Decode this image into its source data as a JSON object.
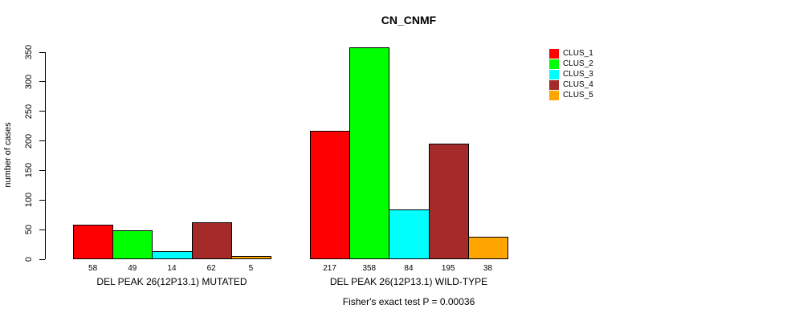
{
  "chart_data": {
    "type": "bar",
    "title": "CN_CNMF",
    "ylabel": "number of cases",
    "xlabel": "",
    "ylim": [
      0,
      350
    ],
    "yticks": [
      0,
      50,
      100,
      150,
      200,
      250,
      300,
      350
    ],
    "grid": false,
    "legend_position": "right",
    "series": [
      {
        "name": "CLUS_1",
        "color": "#FF0000"
      },
      {
        "name": "CLUS_2",
        "color": "#00FF00"
      },
      {
        "name": "CLUS_3",
        "color": "#00FFFF"
      },
      {
        "name": "CLUS_4",
        "color": "#A52A2A"
      },
      {
        "name": "CLUS_5",
        "color": "#FFA500"
      }
    ],
    "groups": [
      {
        "label": "DEL PEAK 26(12P13.1) MUTATED",
        "values": [
          58,
          49,
          14,
          62,
          5
        ]
      },
      {
        "label": "DEL PEAK 26(12P13.1) WILD-TYPE",
        "values": [
          217,
          358,
          84,
          195,
          38
        ]
      }
    ],
    "bar_value_labels": [
      [
        "58",
        "49",
        "14",
        "62",
        "5"
      ],
      [
        "217",
        "358",
        "84",
        "195",
        "38"
      ]
    ],
    "annotation": "Fisher's exact test P = 0.00036"
  }
}
